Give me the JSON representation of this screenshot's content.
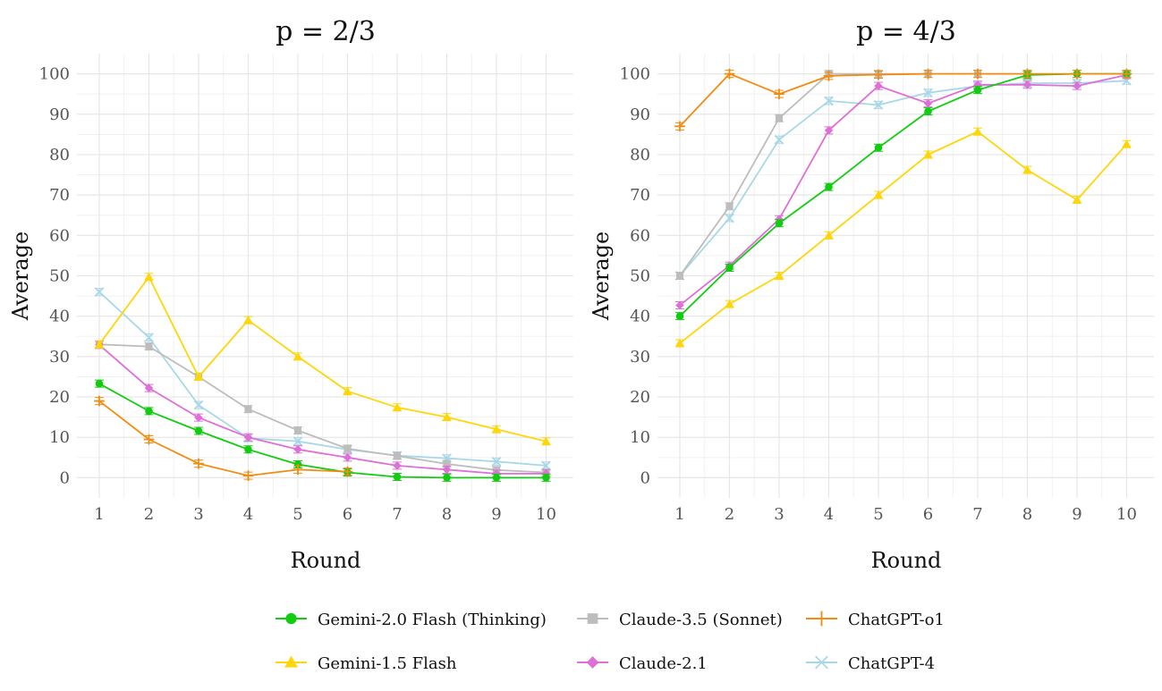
{
  "chart_data": [
    {
      "type": "line",
      "title": "p = 2/3",
      "xlabel": "Round",
      "ylabel": "Average",
      "x": [
        1,
        2,
        3,
        4,
        5,
        6,
        7,
        8,
        9,
        10
      ],
      "xticks": [
        "1",
        "2",
        "3",
        "4",
        "5",
        "6",
        "7",
        "8",
        "9",
        "10"
      ],
      "yticks": [
        "0",
        "10",
        "20",
        "30",
        "40",
        "50",
        "60",
        "70",
        "80",
        "90",
        "100"
      ],
      "ylim": [
        -5,
        105
      ],
      "grid": true,
      "series": [
        {
          "name": "Gemini-2.0 Flash (Thinking)",
          "values": [
            23.3,
            16.5,
            11.6,
            7.0,
            3.3,
            1.3,
            0.2,
            0.0,
            0.0,
            0.0
          ]
        },
        {
          "name": "Gemini-1.5 Flash",
          "values": [
            33.0,
            49.7,
            25.0,
            39.0,
            30.0,
            21.4,
            17.4,
            15.0,
            12.0,
            9.0
          ]
        },
        {
          "name": "Claude-3.5 (Sonnet)",
          "values": [
            33.0,
            32.5,
            25.0,
            17.0,
            11.7,
            7.2,
            5.4,
            3.4,
            1.9,
            1.3
          ]
        },
        {
          "name": "Claude-2.1",
          "values": [
            32.9,
            22.2,
            14.9,
            10.0,
            7.0,
            5.0,
            3.0,
            2.0,
            1.0,
            1.0
          ]
        },
        {
          "name": "ChatGPT-o1",
          "values": [
            19.0,
            9.5,
            3.5,
            0.5,
            2.0,
            1.5,
            null,
            null,
            null,
            null
          ]
        },
        {
          "name": "ChatGPT-4",
          "values": [
            46.0,
            34.7,
            18.0,
            9.8,
            9.0,
            7.0,
            5.5,
            4.8,
            4.0,
            3.0
          ]
        }
      ]
    },
    {
      "type": "line",
      "title": "p = 4/3",
      "xlabel": "Round",
      "ylabel": "Average",
      "x": [
        1,
        2,
        3,
        4,
        5,
        6,
        7,
        8,
        9,
        10
      ],
      "xticks": [
        "1",
        "2",
        "3",
        "4",
        "5",
        "6",
        "7",
        "8",
        "9",
        "10"
      ],
      "yticks": [
        "0",
        "10",
        "20",
        "30",
        "40",
        "50",
        "60",
        "70",
        "80",
        "90",
        "100"
      ],
      "ylim": [
        -5,
        105
      ],
      "grid": true,
      "series": [
        {
          "name": "Gemini-2.0 Flash (Thinking)",
          "values": [
            40.0,
            52.0,
            63.0,
            72.0,
            81.7,
            90.7,
            96.0,
            99.7,
            100.0,
            100.0
          ]
        },
        {
          "name": "Gemini-1.5 Flash",
          "values": [
            33.3,
            43.0,
            50.0,
            60.0,
            70.0,
            80.0,
            85.7,
            76.2,
            68.8,
            82.6
          ]
        },
        {
          "name": "Claude-3.5 (Sonnet)",
          "values": [
            50.0,
            67.2,
            89.0,
            100.0,
            100.0,
            100.0,
            100.0,
            100.0,
            null,
            null
          ]
        },
        {
          "name": "Claude-2.1",
          "values": [
            42.7,
            52.5,
            64.0,
            86.0,
            97.0,
            92.7,
            97.3,
            97.3,
            97.0,
            99.7
          ]
        },
        {
          "name": "ChatGPT-o1",
          "values": [
            87.0,
            100.0,
            95.0,
            99.5,
            99.8,
            100.0,
            100.0,
            100.0,
            100.0,
            100.0
          ]
        },
        {
          "name": "ChatGPT-4",
          "values": [
            50.0,
            64.3,
            83.7,
            93.3,
            92.3,
            95.3,
            97.0,
            97.7,
            97.7,
            98.3
          ]
        }
      ]
    }
  ],
  "legend": {
    "placement": "bottom",
    "items": [
      {
        "name": "Gemini-2.0 Flash (Thinking)",
        "color": "#11cc11",
        "marker": "circle"
      },
      {
        "name": "Claude-3.5 (Sonnet)",
        "color": "#bdbdbd",
        "marker": "square"
      },
      {
        "name": "ChatGPT-o1",
        "color": "#f28c11",
        "marker": "plus"
      },
      {
        "name": "Gemini-1.5 Flash",
        "color": "#ffd60a",
        "marker": "triangle"
      },
      {
        "name": "Claude-2.1",
        "color": "#dd6fd6",
        "marker": "diamond"
      },
      {
        "name": "ChatGPT-4",
        "color": "#a8d8e8",
        "marker": "cross"
      }
    ]
  }
}
